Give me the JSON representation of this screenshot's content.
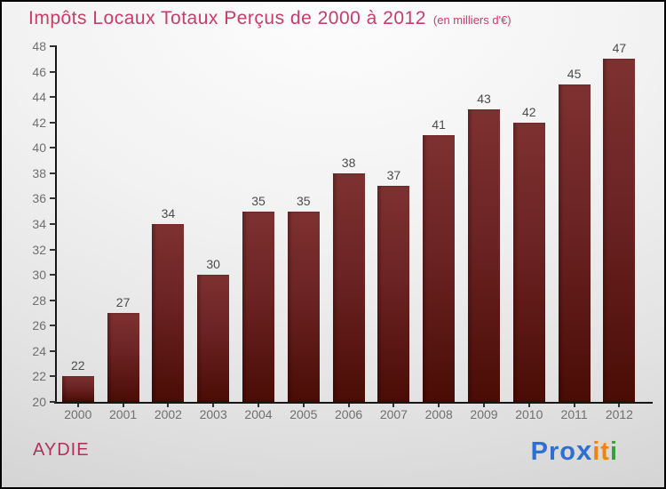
{
  "title": {
    "main": "Impôts Locaux Totaux Perçus de 2000 à 2012",
    "unit": "(en milliers d'€)"
  },
  "chart_data": {
    "type": "bar",
    "title": "Impôts Locaux Totaux Perçus de 2000 à 2012",
    "subtitle": "(en milliers d'€)",
    "categories": [
      "2000",
      "2001",
      "2002",
      "2003",
      "2004",
      "2005",
      "2006",
      "2007",
      "2008",
      "2009",
      "2010",
      "2011",
      "2012"
    ],
    "values": [
      22,
      27,
      34,
      30,
      35,
      35,
      38,
      37,
      41,
      43,
      42,
      45,
      47
    ],
    "xlabel": "",
    "ylabel": "",
    "ylim": [
      20,
      48
    ],
    "ytick_step": 2,
    "grid": false,
    "legend": false,
    "value_labels": true,
    "bar_color_top": "#7e3131",
    "bar_color_bottom": "#4a0c05"
  },
  "footer": {
    "location": "AYDIE",
    "logo": {
      "text": "Proxiti",
      "letters": [
        {
          "ch": "P",
          "color": "#2e6fd2"
        },
        {
          "ch": "r",
          "color": "#2e6fd2"
        },
        {
          "ch": "o",
          "color": "#2e6fd2"
        },
        {
          "ch": "x",
          "color": "#2e6fd2",
          "heavy": true
        },
        {
          "ch": "i",
          "color": "#ef8312"
        },
        {
          "ch": "t",
          "color": "#ef8312"
        },
        {
          "ch": "i",
          "color": "#33a23d"
        }
      ]
    }
  },
  "colors": {
    "title": "#cc3b67",
    "location": "#b52e5c",
    "axis_text": "#6f6f6f",
    "value_text": "#4b4b4b",
    "axis_line": "#161616"
  }
}
